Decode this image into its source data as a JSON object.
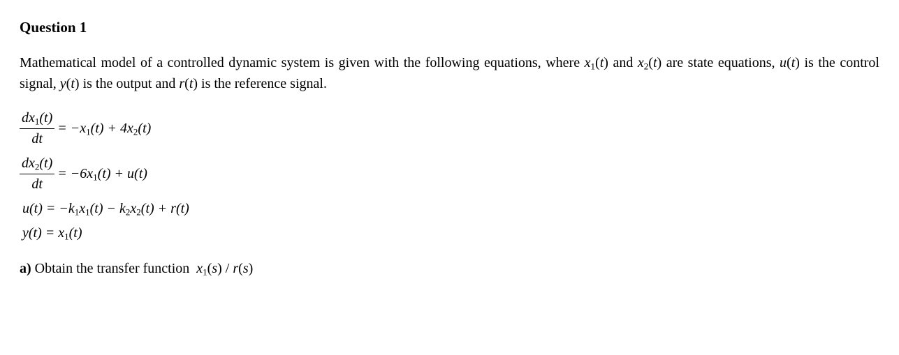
{
  "heading": "Question 1",
  "intro_html": "Mathematical model of a controlled dynamic system is given with the following equations, where <span class='it'>x</span><span class='sub'>1</span>(<span class='it'>t</span>) and <span class='it'>x</span><span class='sub'>2</span>(<span class='it'>t</span>) are state equations, <span class='it'>u</span>(<span class='it'>t</span>) is the control signal, <span class='it'>y</span>(<span class='it'>t</span>) is the output and <span class='it'>r</span>(<span class='it'>t</span>) is the reference signal.",
  "eq1": {
    "num": "dx<span class='sub'>1</span>(t)",
    "den": "dt",
    "rhs": "= &minus;x<span class='sub'>1</span>(t) + 4x<span class='sub'>2</span>(t)"
  },
  "eq2": {
    "num": "dx<span class='sub'>2</span>(t)",
    "den": "dt",
    "rhs": "= &minus;6x<span class='sub'>1</span>(t) + u(t)"
  },
  "eq3": "u(t) = &minus;k<span class='sub'>1</span>x<span class='sub'>1</span>(t) &minus; k<span class='sub'>2</span>x<span class='sub'>2</span>(t) + r(t)",
  "eq4": "y(t) = x<span class='sub'>1</span>(t)",
  "part_a_label": "a)",
  "part_a_html": "Obtain the transfer function &nbsp;<span class='it'>x</span><span class='sub'>1</span>(<span class='it'>s</span>) / <span class='it'>r</span>(<span class='it'>s</span>)"
}
